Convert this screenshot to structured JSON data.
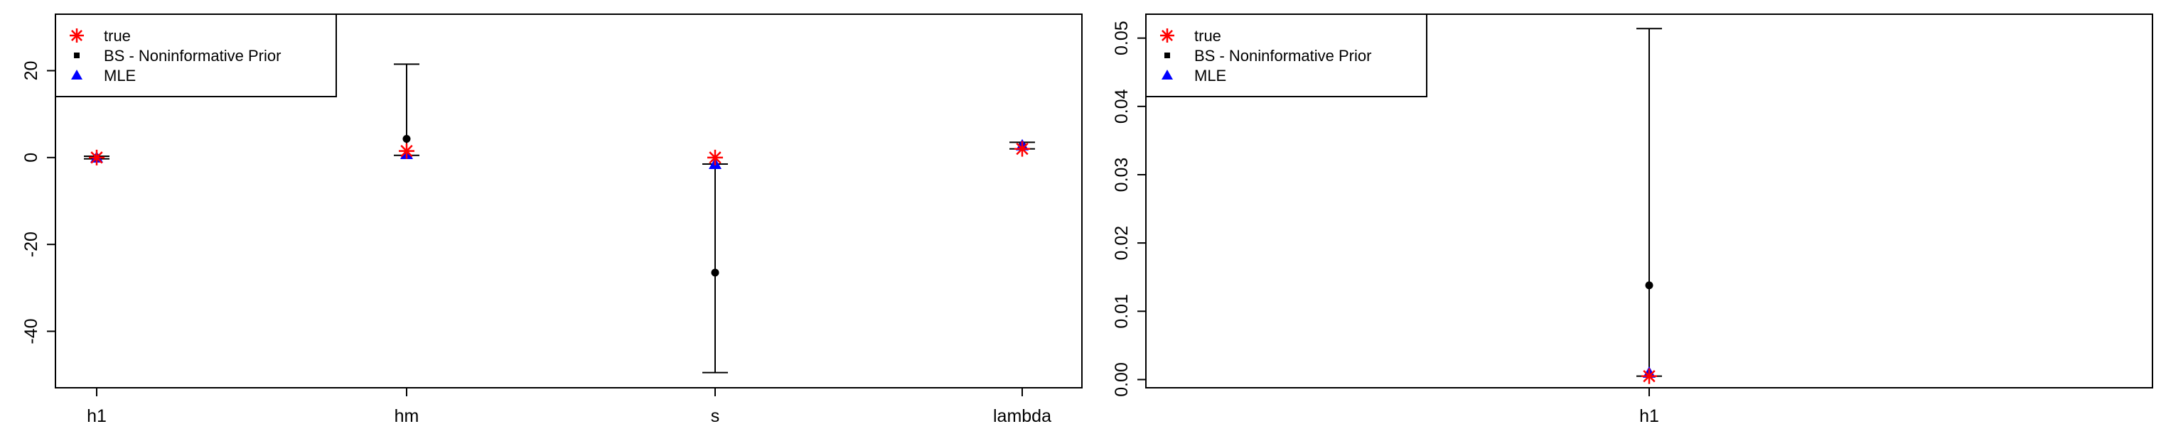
{
  "chart_data": [
    {
      "type": "scatter",
      "subtype": "point-estimates-with-intervals",
      "title": "",
      "xlabel": "",
      "ylabel": "",
      "categories": [
        "h1",
        "hm",
        "s",
        "lambda"
      ],
      "ylim": [
        -53,
        33
      ],
      "yticks": [
        20,
        0,
        -20,
        -40
      ],
      "yticklabels": [
        "20",
        "0",
        "-20",
        "-40"
      ],
      "legend": {
        "position": "top-left",
        "entries": [
          {
            "label": "true",
            "marker": "asterisk",
            "color": "#ff0000"
          },
          {
            "label": "BS - Noninformative Prior",
            "marker": "square",
            "color": "#000000"
          },
          {
            "label": "MLE",
            "marker": "triangle",
            "color": "#0000ff"
          }
        ]
      },
      "series": [
        {
          "name": "true",
          "marker": "asterisk",
          "color": "#ff0000",
          "values": [
            0,
            1.5,
            0,
            2
          ]
        },
        {
          "name": "BS - Noninformative Prior",
          "marker": "circle",
          "color": "#000000",
          "values": [
            0,
            4.3,
            -26.5,
            2.7
          ]
        },
        {
          "name": "MLE",
          "marker": "triangle",
          "color": "#0000ff",
          "values": [
            0,
            0.8,
            -1.5,
            2.8
          ]
        }
      ],
      "intervals": [
        {
          "category": "h1",
          "low": -0.3,
          "high": 0.3
        },
        {
          "category": "hm",
          "low": 0.5,
          "high": 21.5
        },
        {
          "category": "s",
          "low": -49.5,
          "high": -1.5
        },
        {
          "category": "lambda",
          "low": 2.0,
          "high": 3.5
        }
      ]
    },
    {
      "type": "scatter",
      "subtype": "point-estimates-with-intervals",
      "title": "",
      "xlabel": "",
      "ylabel": "",
      "categories": [
        "h1"
      ],
      "ylim": [
        -0.0012,
        0.0535
      ],
      "yticks": [
        0.0,
        0.01,
        0.02,
        0.03,
        0.04,
        0.05
      ],
      "yticklabels": [
        "0.00",
        "0.01",
        "0.02",
        "0.03",
        "0.04",
        "0.05"
      ],
      "legend": {
        "position": "top-left",
        "entries": [
          {
            "label": "true",
            "marker": "asterisk",
            "color": "#ff0000"
          },
          {
            "label": "BS - Noninformative Prior",
            "marker": "square",
            "color": "#000000"
          },
          {
            "label": "MLE",
            "marker": "triangle",
            "color": "#0000ff"
          }
        ]
      },
      "series": [
        {
          "name": "true",
          "marker": "asterisk",
          "color": "#ff0000",
          "values": [
            0.0005
          ]
        },
        {
          "name": "BS - Noninformative Prior",
          "marker": "circle",
          "color": "#000000",
          "values": [
            0.0138
          ]
        },
        {
          "name": "MLE",
          "marker": "triangle",
          "color": "#0000ff",
          "values": [
            0.001
          ]
        }
      ],
      "intervals": [
        {
          "category": "h1",
          "low": 0.0005,
          "high": 0.0514
        }
      ]
    }
  ]
}
